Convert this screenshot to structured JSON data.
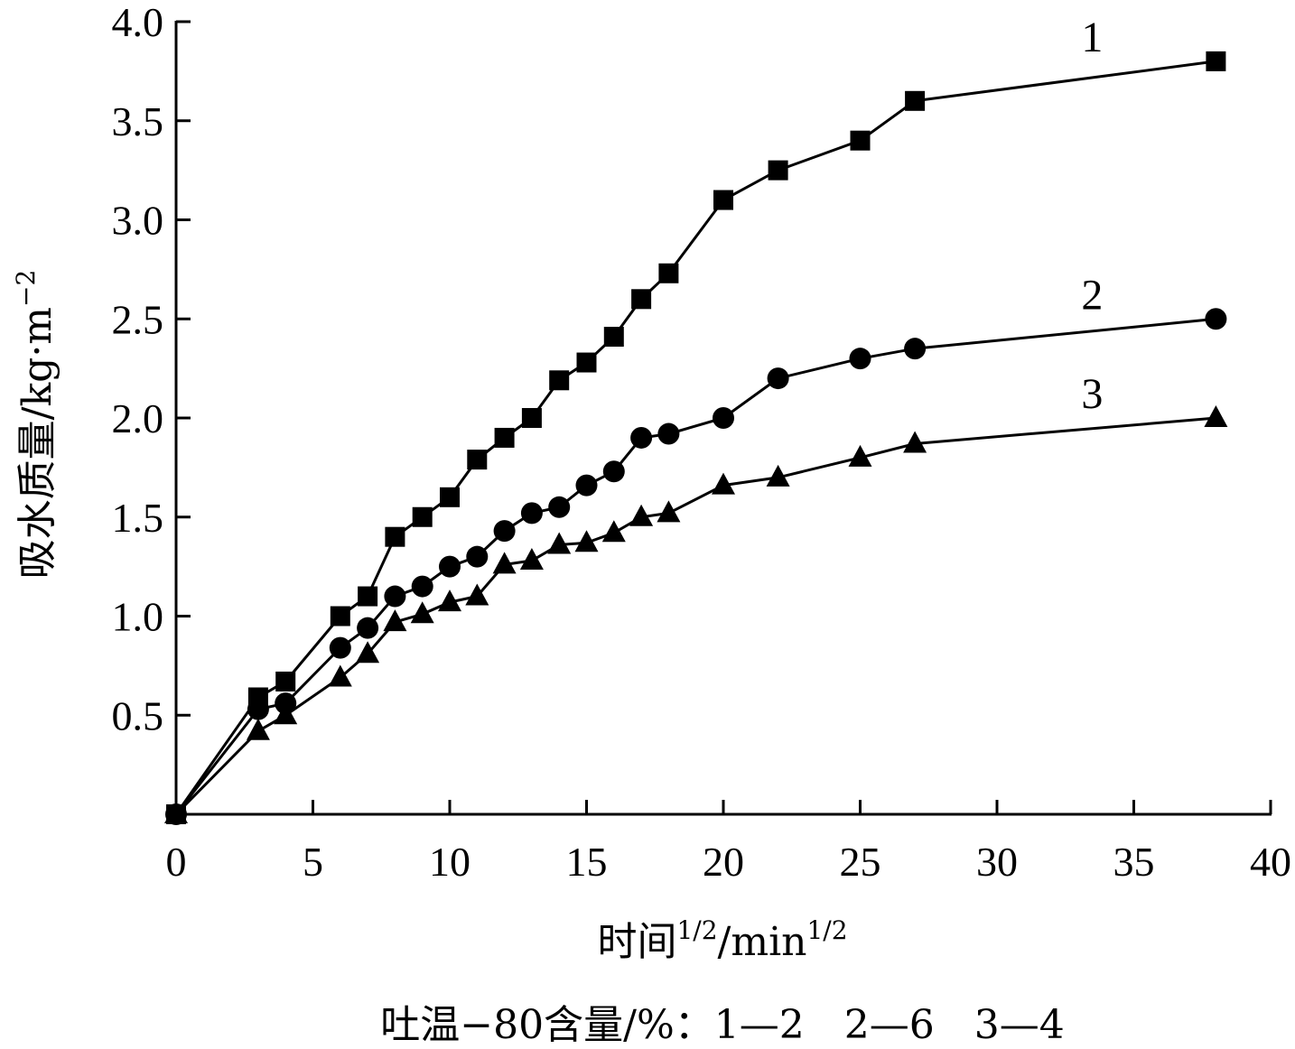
{
  "chart_data": {
    "type": "line",
    "title": "",
    "xlabel": "时间",
    "xlabel_unit": "/min",
    "xlabel_sup": "1/2",
    "ylabel": "吸水质量/kg·m",
    "ylabel_sup": "−2",
    "xlim": [
      0,
      40
    ],
    "ylim": [
      0,
      4.0
    ],
    "x_ticks": [
      "0",
      "5",
      "10",
      "15",
      "20",
      "25",
      "30",
      "35",
      "40"
    ],
    "y_ticks": [
      "0.5",
      "1.0",
      "1.5",
      "2.0",
      "2.5",
      "3.0",
      "3.5",
      "4.0"
    ],
    "grid": false,
    "series": [
      {
        "name": "1",
        "marker": "square",
        "x": [
          0,
          3,
          4,
          6,
          7,
          8,
          9,
          10,
          11,
          12,
          13,
          14,
          15,
          16,
          17,
          18,
          20,
          22,
          25,
          27,
          38
        ],
        "y": [
          0,
          0.59,
          0.67,
          1.0,
          1.1,
          1.4,
          1.5,
          1.6,
          1.79,
          1.9,
          2.0,
          2.19,
          2.28,
          2.41,
          2.6,
          2.73,
          3.1,
          3.25,
          3.4,
          3.6,
          3.8
        ]
      },
      {
        "name": "2",
        "marker": "circle",
        "x": [
          0,
          3,
          4,
          6,
          7,
          8,
          9,
          10,
          11,
          12,
          13,
          14,
          15,
          16,
          17,
          18,
          20,
          22,
          25,
          27,
          38
        ],
        "y": [
          0,
          0.53,
          0.56,
          0.84,
          0.94,
          1.1,
          1.15,
          1.25,
          1.3,
          1.43,
          1.52,
          1.55,
          1.66,
          1.73,
          1.9,
          1.92,
          2.0,
          2.2,
          2.3,
          2.35,
          2.5
        ]
      },
      {
        "name": "3",
        "marker": "triangle",
        "x": [
          0,
          3,
          4,
          6,
          7,
          8,
          9,
          10,
          11,
          12,
          13,
          14,
          15,
          16,
          17,
          18,
          20,
          22,
          25,
          27,
          38
        ],
        "y": [
          0,
          0.42,
          0.5,
          0.69,
          0.81,
          0.97,
          1.01,
          1.07,
          1.1,
          1.26,
          1.28,
          1.36,
          1.37,
          1.42,
          1.5,
          1.52,
          1.66,
          1.7,
          1.8,
          1.87,
          2.0
        ]
      }
    ],
    "caption": "吐温−80含量/%：1—2　2—6　3—4"
  }
}
